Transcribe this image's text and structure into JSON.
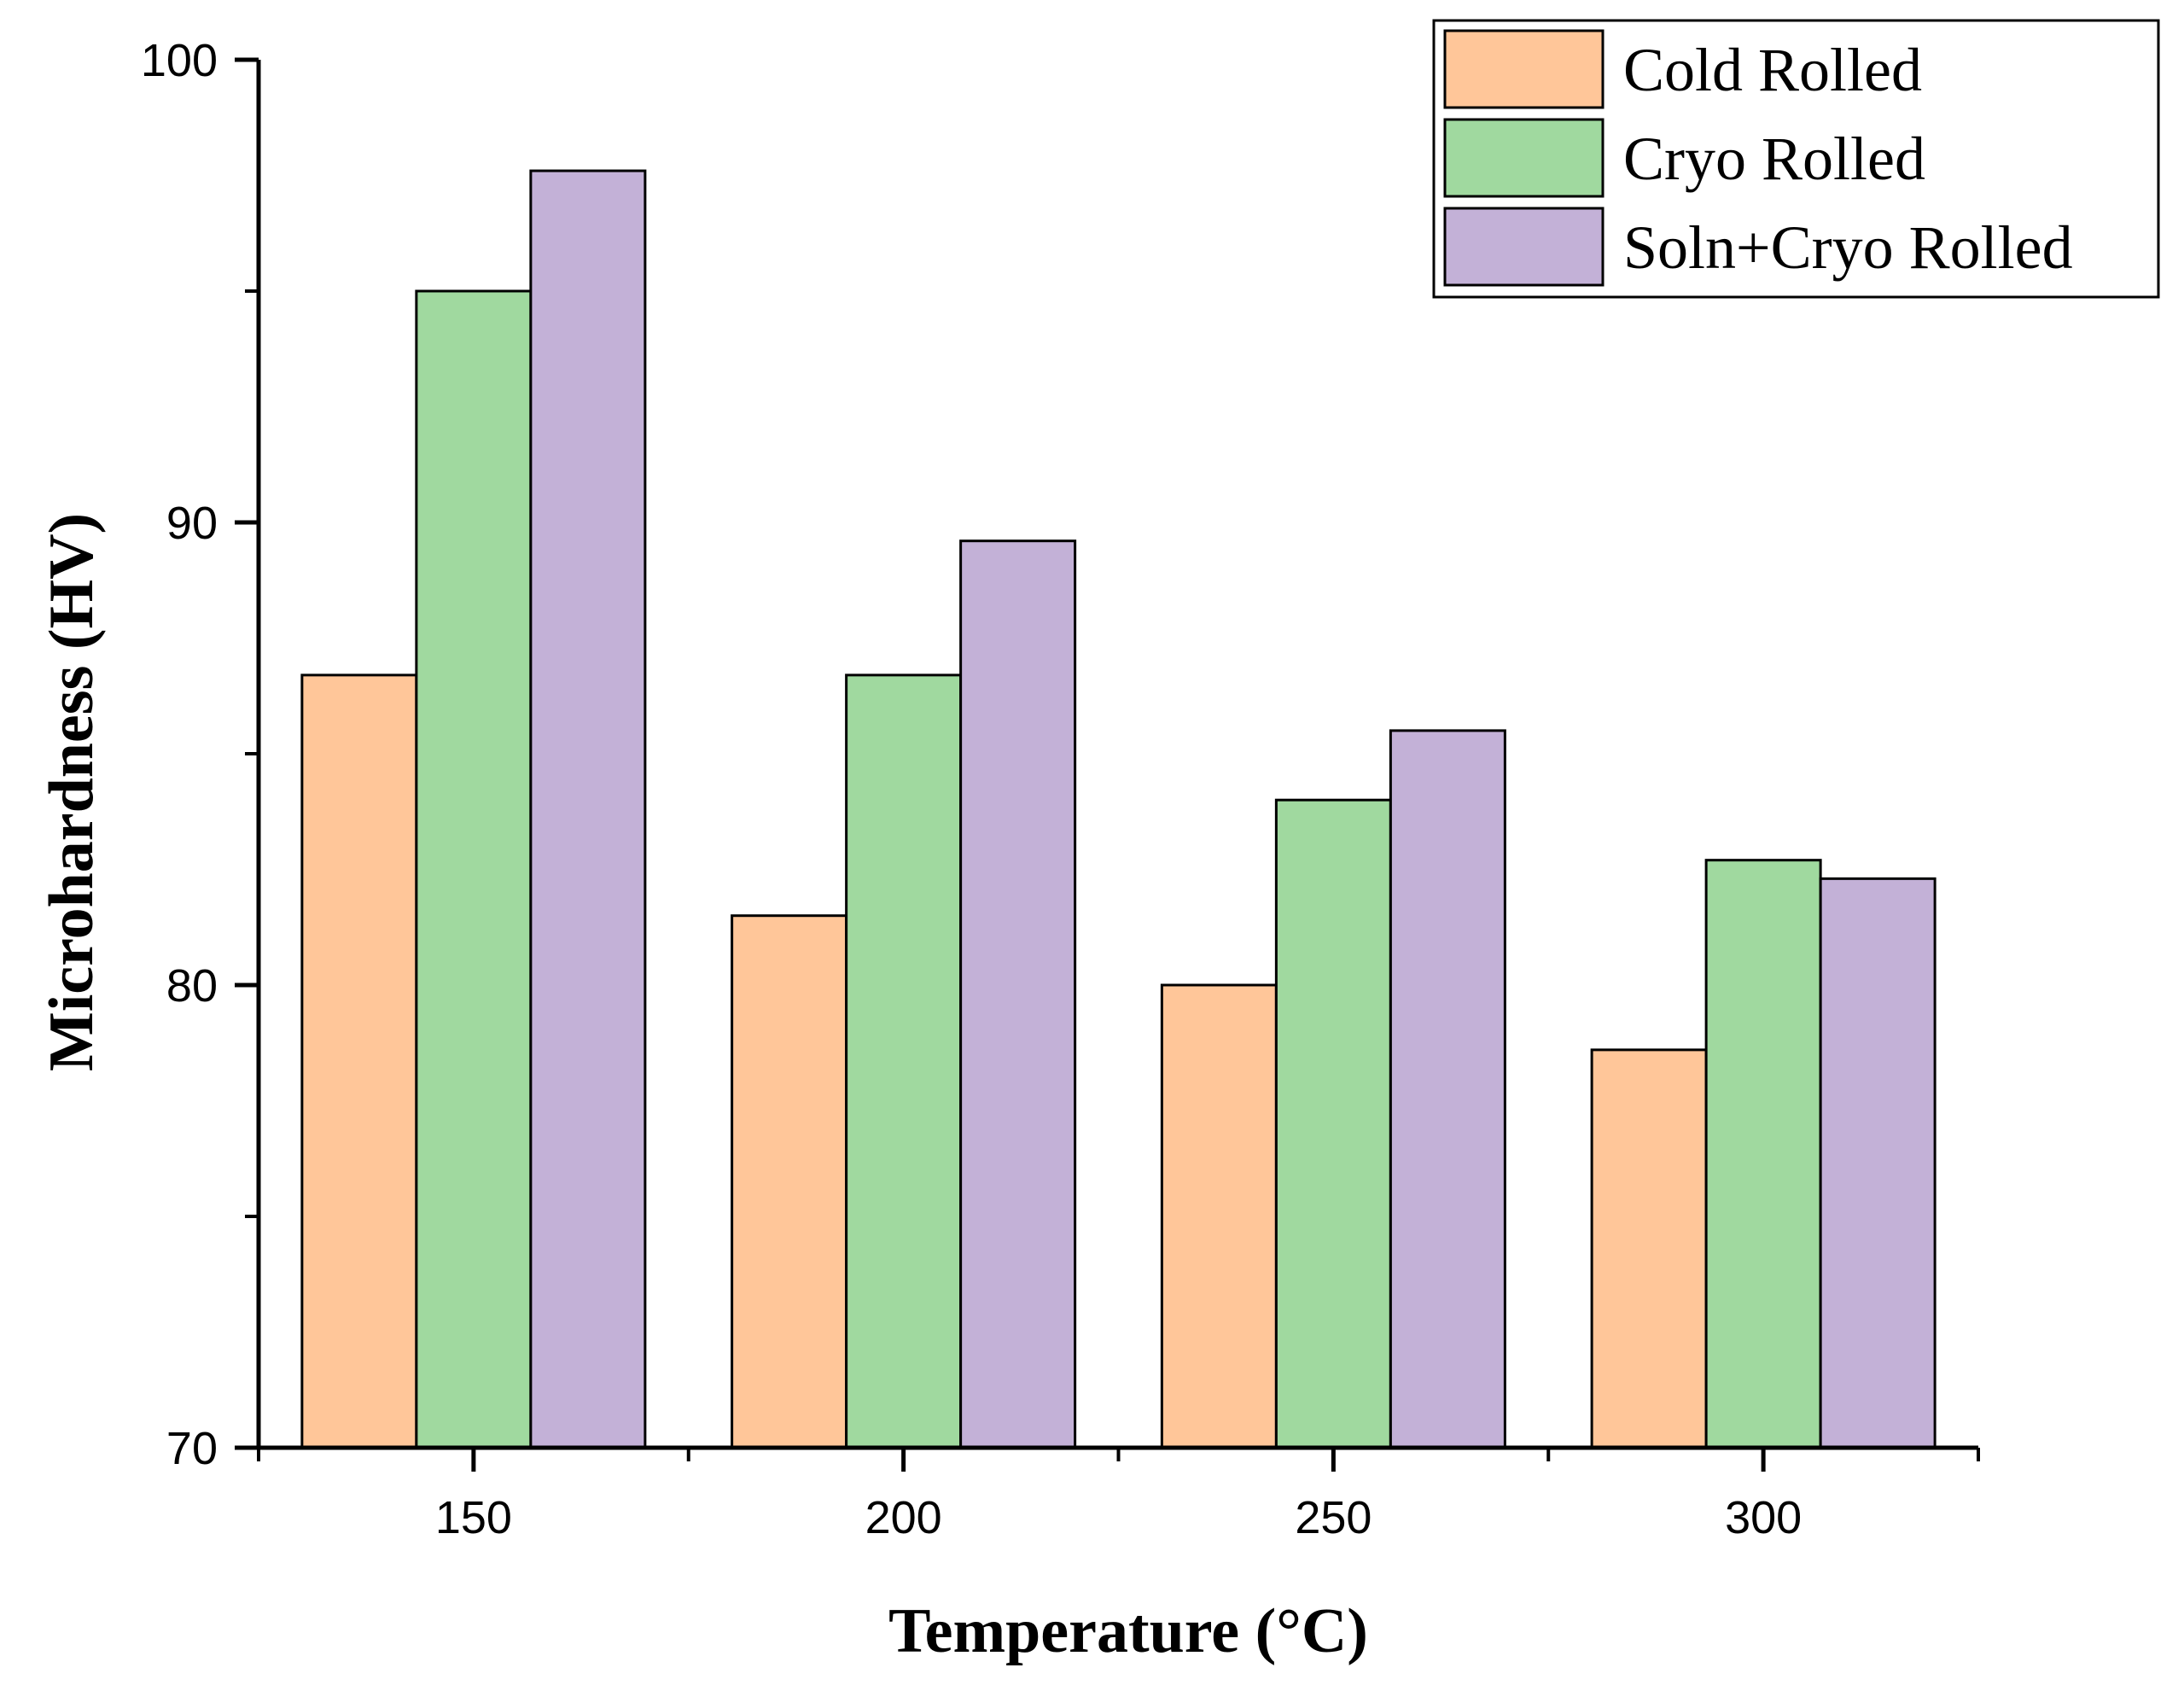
{
  "chart_data": {
    "type": "bar",
    "title": "",
    "xlabel": "Temperature (°C)",
    "ylabel": "Microhardness (HV)",
    "categories": [
      "150",
      "200",
      "250",
      "300"
    ],
    "ylim": [
      70,
      100
    ],
    "yticks": [
      "70",
      "80",
      "90",
      "100"
    ],
    "y_minor_step": 5,
    "legend_position": "top-right",
    "grid": false,
    "series": [
      {
        "name": "Cold Rolled",
        "color": "#ffc699",
        "values": [
          86.7,
          81.5,
          80.0,
          78.6
        ]
      },
      {
        "name": "Cryo Rolled",
        "color": "#a0d99f",
        "values": [
          95.0,
          86.7,
          84.0,
          82.7
        ]
      },
      {
        "name": "Soln+Cryo Rolled",
        "color": "#c3b1d7",
        "values": [
          97.6,
          89.6,
          85.5,
          82.3
        ]
      }
    ]
  }
}
